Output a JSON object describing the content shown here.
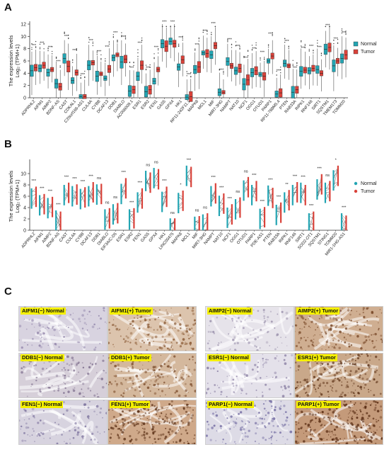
{
  "panels": {
    "A": {
      "letter": "A",
      "chart_data": {
        "type": "box",
        "ylabel_line1": "The expression levels",
        "ylabel_line2": "Log₂ (TPM+1)",
        "ylim": [
          0,
          12
        ],
        "yticks": [
          0,
          2,
          4,
          6,
          8,
          10,
          12
        ],
        "categories": [
          "ADPRHL2",
          "AIFM1",
          "AIMP2",
          "BDNF-AS",
          "CAST",
          "CDKAL1",
          "C20orf166-AS1",
          "CUL4A",
          "CYBB",
          "DCAF13",
          "DDB1",
          "DIABLO",
          "AC006009.1",
          "ESR1",
          "ESR2",
          "FEN1",
          "GAS5",
          "GPX4",
          "HK1",
          "RP11-242F11.1",
          "MAPK8",
          "MCL1",
          "MIF",
          "MIR7-3HG",
          "NAMPT",
          "NAT10",
          "NCF1",
          "OGG1",
          "OTUD1",
          "PARP1",
          "RP11-788M5.4",
          "PTEN",
          "RAB33A",
          "RIPK1",
          "RNF146",
          "SIRT1",
          "SQSTM1",
          "TMEM173",
          "TOMM20"
        ],
        "significance": [
          "***",
          "***",
          "***",
          "***",
          "***",
          "***",
          "***",
          "***",
          "***",
          "***",
          "***",
          "***",
          "***",
          "***",
          "***",
          "***",
          "***",
          "***",
          "***",
          "***",
          "***",
          "***",
          "***",
          "***",
          "***",
          "***",
          "***",
          "***",
          "***",
          "***",
          "***",
          "***",
          "***",
          "***",
          "***",
          "***",
          "***",
          "***",
          "***"
        ],
        "series": [
          {
            "name": "Normal",
            "values": [
              4.4,
              4.8,
              4.1,
              2.3,
              6.4,
              2.8,
              0.2,
              5.3,
              3.5,
              3.2,
              6.5,
              5.8,
              1.1,
              3.5,
              1.0,
              2.7,
              8.8,
              9.2,
              5.0,
              0.1,
              4.6,
              7.3,
              7.0,
              0.9,
              5.9,
              4.4,
              2.2,
              4.1,
              3.8,
              6.0,
              0.6,
              5.6,
              0.9,
              4.3,
              4.4,
              4.6,
              7.9,
              5.2,
              6.4
            ]
          },
          {
            "name": "Tumor",
            "values": [
              4.9,
              5.3,
              4.6,
              1.8,
              5.1,
              4.1,
              0.2,
              5.7,
              3.9,
              4.7,
              7.0,
              6.3,
              1.3,
              5.3,
              1.3,
              4.6,
              8.4,
              8.8,
              6.2,
              0.2,
              5.0,
              7.2,
              8.5,
              0.9,
              5.2,
              4.8,
              2.9,
              4.4,
              3.5,
              6.8,
              0.8,
              5.2,
              1.3,
              4.5,
              4.8,
              4.0,
              8.2,
              6.0,
              7.0
            ]
          }
        ],
        "colors": {
          "Normal": "#23a5b3",
          "Tumor": "#d9423a"
        },
        "legend_placement": "right"
      }
    },
    "B": {
      "letter": "B",
      "chart_data": {
        "type": "paired-line",
        "ylabel_line1": "The expression levels",
        "ylabel_line2": "Log₂ (TPM+1)",
        "ylim": [
          0,
          12
        ],
        "yticks": [
          0,
          2,
          4,
          6,
          8,
          10
        ],
        "categories": [
          "ADPRHL2",
          "AIFM1",
          "AIMP2",
          "BDNF-AS",
          "CAST",
          "CUL4A",
          "CYBB",
          "DCAF13",
          "DDB1",
          "DIABLO",
          "EIF3A/C-D5",
          "ESR1",
          "ESR2",
          "FEN1",
          "GAS5",
          "GPX4",
          "HK1",
          "LINC00475",
          "MAPK8",
          "MCL1",
          "MIF",
          "MIR7-3HG",
          "NAMPT",
          "NAT10",
          "NCF1",
          "OGG1",
          "OTUD1",
          "PARP1",
          "PDE-AS1",
          "PTEN",
          "RAB33A",
          "RIPK1",
          "RNF146",
          "SIRT1",
          "SOD2-OT1",
          "SQSTM1",
          "STING1",
          "TOMM20",
          "MIR1-1HG-AS1"
        ],
        "significance": [
          "***",
          "***",
          "***",
          "***",
          "***",
          "***",
          "***",
          "***",
          "ns",
          "ns",
          "ns",
          "***",
          "***",
          "***",
          "ns",
          "ns",
          "***",
          "ns",
          "*",
          "***",
          "ns",
          "ns",
          "***",
          "***",
          "***",
          "ns",
          "ns",
          "***",
          "***",
          "***",
          "***",
          "**",
          "***",
          "***",
          "***",
          "***",
          "ns",
          "*",
          "***"
        ],
        "series": [
          {
            "name": "Normal",
            "values": [
              5.6,
              4.4,
              3.9,
              1.7,
              6.2,
              6.0,
              5.5,
              6.0,
              6.3,
              1.9,
              2.8,
              6.4,
              1.9,
              4.9,
              8.7,
              9.2,
              5.0,
              0.3,
              4.8,
              9.6,
              0.6,
              1.0,
              6.0,
              4.3,
              2.2,
              3.7,
              7.0,
              6.2,
              2.0,
              6.1,
              2.7,
              4.9,
              6.2,
              6.6,
              1.2,
              7.2,
              6.6,
              8.8,
              1.2
            ]
          },
          {
            "name": "Tumor",
            "values": [
              5.9,
              4.6,
              4.1,
              1.5,
              6.6,
              6.3,
              5.8,
              6.7,
              6.4,
              2.1,
              3.0,
              7.4,
              2.1,
              5.6,
              8.4,
              9.0,
              5.9,
              0.3,
              5.2,
              9.4,
              0.7,
              1.2,
              6.5,
              4.7,
              2.8,
              4.0,
              7.6,
              6.9,
              2.3,
              5.7,
              3.1,
              5.3,
              6.7,
              6.2,
              1.5,
              8.1,
              6.9,
              9.6,
              0.8
            ]
          }
        ],
        "colors": {
          "Normal": "#23a5b3",
          "Tumor": "#d9423a"
        },
        "legend_placement": "right"
      }
    },
    "C": {
      "letter": "C",
      "images": [
        {
          "label": "AIFM1(−) Normal",
          "tone": "#d8d3e0",
          "spot": "#8f82a8",
          "density": 0.15
        },
        {
          "label": "AIFM1(+) Tumor",
          "tone": "#dcc4ad",
          "spot": "#8a5a35",
          "density": 0.35
        },
        {
          "label": "AIMP2(−) Normal",
          "tone": "#e6e3ea",
          "spot": "#9c92ad",
          "density": 0.12
        },
        {
          "label": "AIMP2(+) Tumor",
          "tone": "#cfae91",
          "spot": "#7a4a2a",
          "density": 0.4
        },
        {
          "label": "DDB1(−) Normal",
          "tone": "#d6cfd9",
          "spot": "#7a6a8a",
          "density": 0.2
        },
        {
          "label": "DDB1(+) Tumor",
          "tone": "#d4b89d",
          "spot": "#7e4f2e",
          "density": 0.35
        },
        {
          "label": "ESR1(−) Normal",
          "tone": "#e4e1ea",
          "spot": "#8a7fa3",
          "density": 0.12
        },
        {
          "label": "ESR1(+) Tumor",
          "tone": "#c9a88a",
          "spot": "#5e3318",
          "density": 0.55
        },
        {
          "label": "FEN1(−) Normal",
          "tone": "#d7d3df",
          "spot": "#8076a0",
          "density": 0.18
        },
        {
          "label": "FEN1(+) Tumor",
          "tone": "#cfa98a",
          "spot": "#5a2f15",
          "density": 0.6
        },
        {
          "label": "PARP1(−) Normal",
          "tone": "#dddbe6",
          "spot": "#6f68a0",
          "density": 0.3
        },
        {
          "label": "PARP1(+) Tumor",
          "tone": "#c49a7a",
          "spot": "#55280f",
          "density": 0.7
        }
      ]
    }
  }
}
